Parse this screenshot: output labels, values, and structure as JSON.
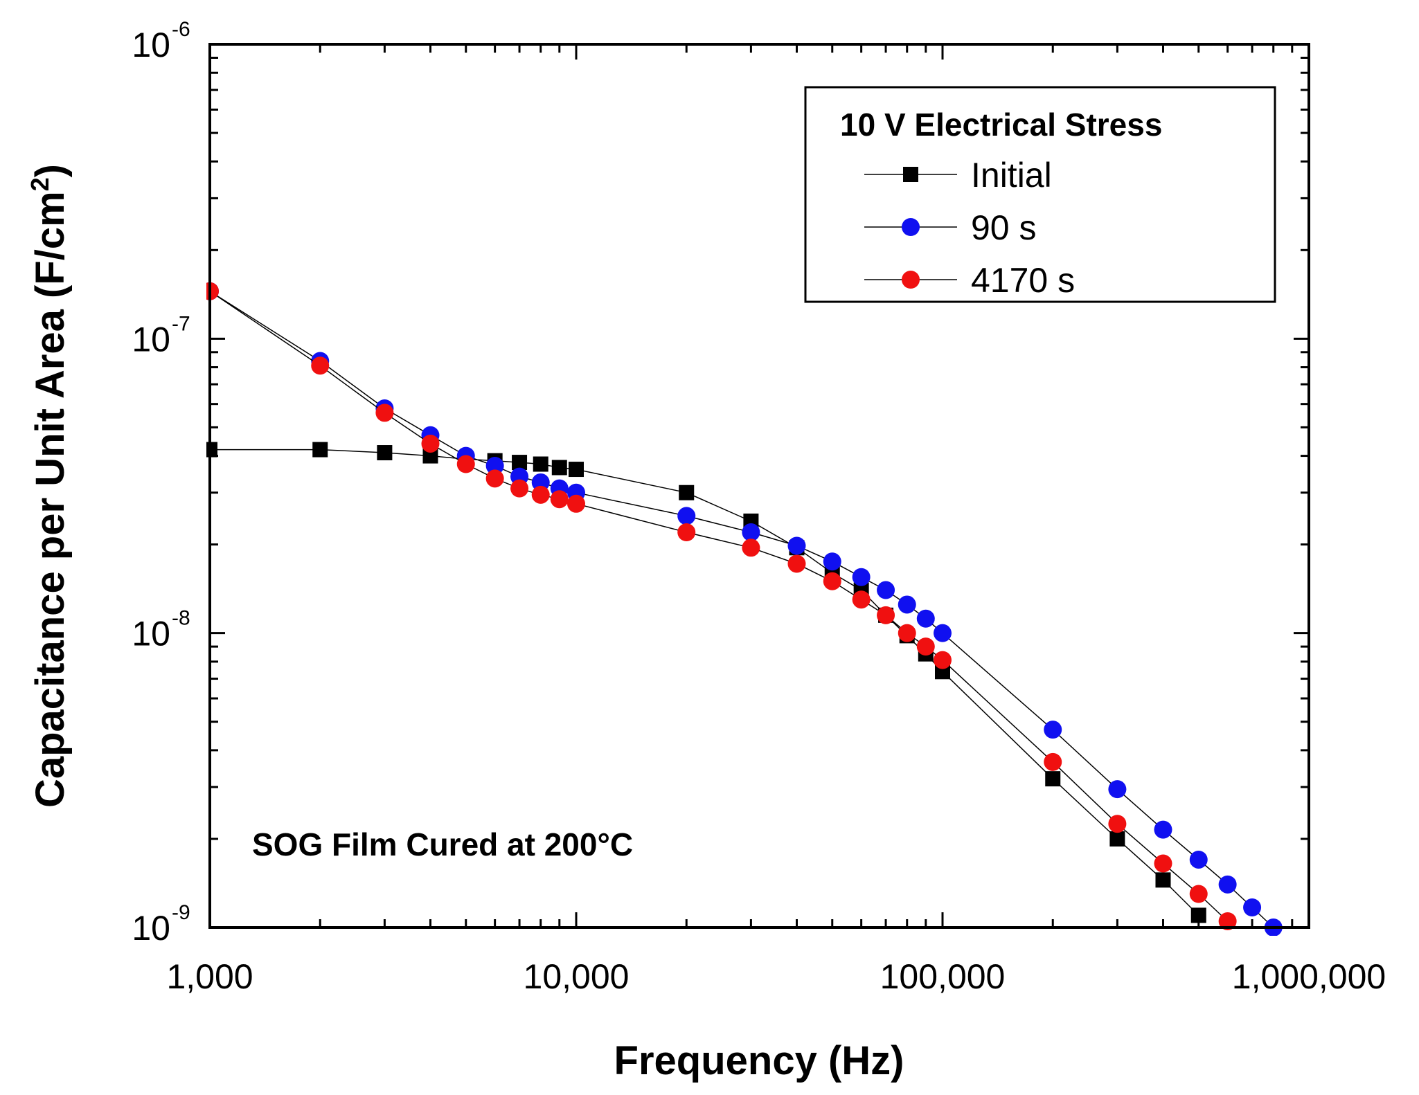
{
  "chart_data": {
    "type": "scatter",
    "title": "",
    "xlabel": "Frequency (Hz)",
    "ylabel_main": "Capacitance per Unit Area (F/cm",
    "ylabel_sup": "2",
    "ylabel_end": ")",
    "xscale": "log",
    "yscale": "log",
    "xlim": [
      1000,
      1000000
    ],
    "ylim": [
      1e-09,
      1e-06
    ],
    "x_ticks": [
      {
        "value": 1000,
        "label": "1,000"
      },
      {
        "value": 10000,
        "label": "10,000"
      },
      {
        "value": 100000,
        "label": "100,000"
      },
      {
        "value": 1000000,
        "label": "1,000,000"
      }
    ],
    "y_ticks": [
      {
        "value": 1e-06,
        "base": "10",
        "exp": "-6"
      },
      {
        "value": 1e-07,
        "base": "10",
        "exp": "-7"
      },
      {
        "value": 1e-08,
        "base": "10",
        "exp": "-8"
      },
      {
        "value": 1e-09,
        "base": "10",
        "exp": "-9"
      }
    ],
    "legend_title": "10 V Electrical Stress",
    "legend_position": "top-right",
    "annotation": "SOG Film Cured at 200°C",
    "series": [
      {
        "name": "Initial",
        "marker": "square",
        "color": "#000000",
        "x": [
          1000,
          2000,
          3000,
          4000,
          5000,
          6000,
          7000,
          8000,
          9000,
          10000,
          20000,
          30000,
          40000,
          50000,
          60000,
          70000,
          80000,
          90000,
          100000,
          200000,
          300000,
          400000,
          500000
        ],
        "y": [
          4.2e-08,
          4.2e-08,
          4.1e-08,
          4e-08,
          3.9e-08,
          3.85e-08,
          3.8e-08,
          3.75e-08,
          3.65e-08,
          3.6e-08,
          3e-08,
          2.4e-08,
          1.95e-08,
          1.6e-08,
          1.4e-08,
          1.15e-08,
          9.8e-09,
          8.5e-09,
          7.4e-09,
          3.2e-09,
          2e-09,
          1.45e-09,
          1.1e-09
        ]
      },
      {
        "name": "90 s",
        "marker": "circle",
        "color": "#1010f0",
        "x": [
          1000,
          2000,
          3000,
          4000,
          5000,
          6000,
          7000,
          8000,
          9000,
          10000,
          20000,
          30000,
          40000,
          50000,
          60000,
          70000,
          80000,
          90000,
          100000,
          200000,
          300000,
          400000,
          500000,
          600000,
          700000,
          800000
        ],
        "y": [
          1.45e-07,
          8.4e-08,
          5.8e-08,
          4.7e-08,
          4e-08,
          3.7e-08,
          3.4e-08,
          3.25e-08,
          3.1e-08,
          3e-08,
          2.5e-08,
          2.2e-08,
          1.98e-08,
          1.75e-08,
          1.55e-08,
          1.4e-08,
          1.25e-08,
          1.12e-08,
          1e-08,
          4.7e-09,
          2.95e-09,
          2.15e-09,
          1.7e-09,
          1.4e-09,
          1.17e-09,
          1e-09
        ]
      },
      {
        "name": "4170 s",
        "marker": "circle",
        "color": "#f01010",
        "x": [
          1000,
          2000,
          3000,
          4000,
          5000,
          6000,
          7000,
          8000,
          9000,
          10000,
          20000,
          30000,
          40000,
          50000,
          60000,
          70000,
          80000,
          90000,
          100000,
          200000,
          300000,
          400000,
          500000,
          600000
        ],
        "y": [
          1.45e-07,
          8.1e-08,
          5.6e-08,
          4.4e-08,
          3.75e-08,
          3.35e-08,
          3.1e-08,
          2.95e-08,
          2.85e-08,
          2.75e-08,
          2.2e-08,
          1.95e-08,
          1.72e-08,
          1.5e-08,
          1.3e-08,
          1.15e-08,
          1e-08,
          9e-09,
          8.1e-09,
          3.65e-09,
          2.25e-09,
          1.65e-09,
          1.3e-09,
          1.05e-09
        ]
      }
    ]
  }
}
